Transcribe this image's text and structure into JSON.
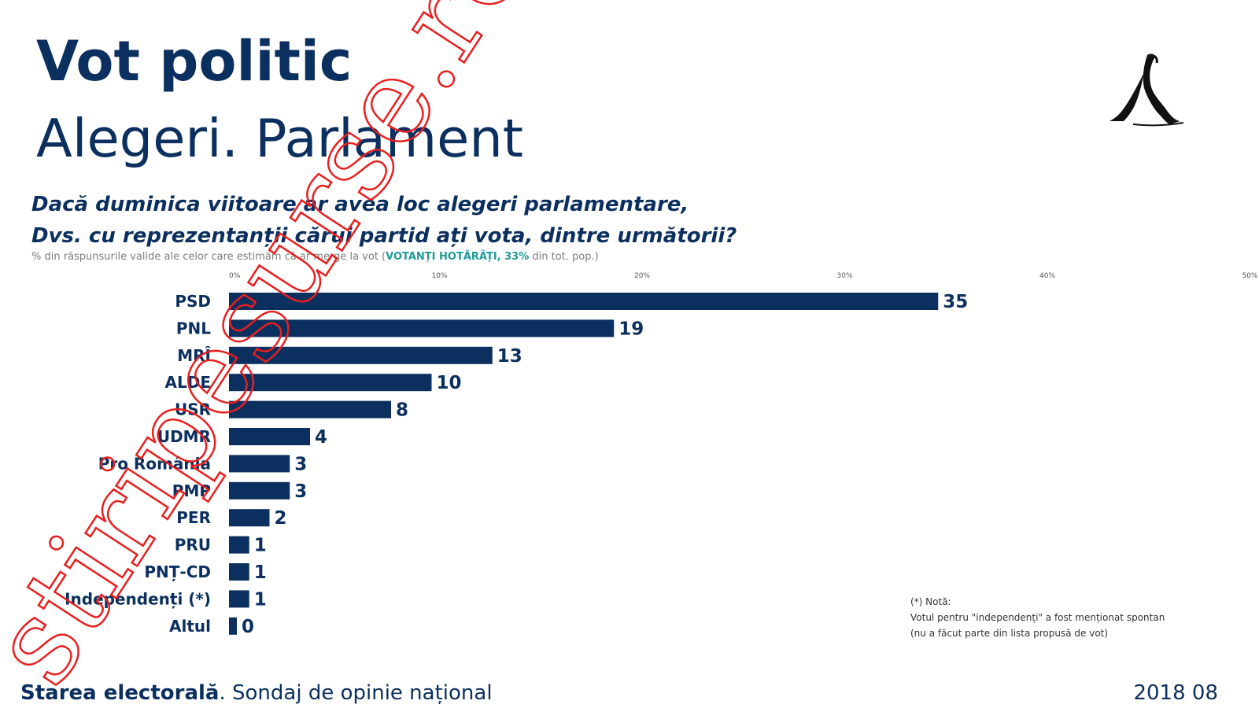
{
  "header": {
    "title": "Vot politic",
    "subtitle": "Alegeri. Parlament",
    "question_line1": "Dacă duminica viitoare ar avea loc alegeri parlamentare,",
    "question_line2": "Dvs. cu reprezentanții cărui partid ați vota, dintre următorii?",
    "base_note_prefix": "% din răspunsurile valide ale celor care estimăm că ar merge la vot (",
    "base_note_highlight": "VOTANȚI HOTĂRÂȚI, 33%",
    "base_note_suffix": " din tot. pop.)"
  },
  "footnote": {
    "line1": "(*) Notă:",
    "line2": "Votul pentru \"independenți\" a fost menționat spontan",
    "line3": "(nu a făcut parte din lista propusă de vot)"
  },
  "footer": {
    "source_bold": "Starea electorală",
    "source_rest": ". Sondaj de opinie național",
    "date": "2018 08"
  },
  "watermark": {
    "text": "stiripesurse.ro"
  },
  "colors": {
    "bar": "#0b2f5e",
    "text": "#0b2f5e",
    "highlight": "#1e9a9a",
    "watermark": "#e81f1f"
  },
  "chart_data": {
    "type": "bar",
    "orientation": "horizontal",
    "categories": [
      "PSD",
      "PNL",
      "MRÎ",
      "ALDE",
      "USR",
      "UDMR",
      "Pro România",
      "PMP",
      "PER",
      "PRU",
      "PNȚ-CD",
      "Independenți (*)",
      "Altul"
    ],
    "values": [
      35,
      19,
      13,
      10,
      8,
      4,
      3,
      3,
      2,
      1,
      1,
      1,
      0
    ],
    "xlim": [
      0,
      50
    ],
    "xticks": [
      "0%",
      "10%",
      "20%",
      "30%",
      "40%",
      "50%"
    ],
    "grid": false,
    "legend": "none"
  }
}
